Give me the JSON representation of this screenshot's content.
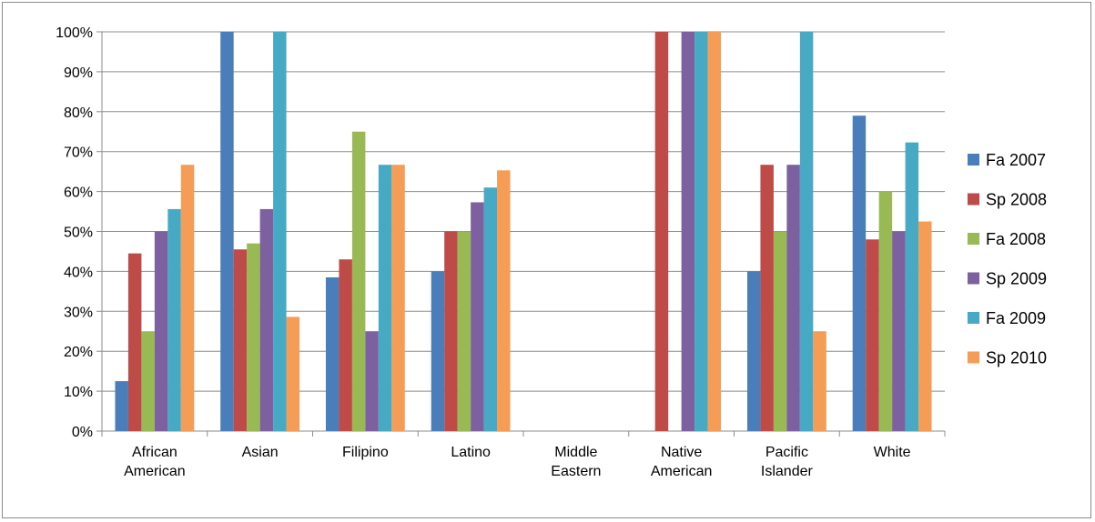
{
  "chart_data": {
    "type": "bar",
    "categories": [
      [
        "African",
        "American"
      ],
      [
        "Asian"
      ],
      [
        "Filipino"
      ],
      [
        "Latino"
      ],
      [
        "Middle",
        "Eastern"
      ],
      [
        "Native",
        "American"
      ],
      [
        "Pacific",
        "Islander"
      ],
      [
        "White"
      ]
    ],
    "series": [
      {
        "name": "Fa 2007",
        "color": "#4a7ebb",
        "values": [
          12.5,
          100,
          38.5,
          40,
          null,
          null,
          40,
          79
        ]
      },
      {
        "name": "Sp 2008",
        "color": "#be4b48",
        "values": [
          44.5,
          45.5,
          43,
          50,
          null,
          100,
          66.7,
          48
        ]
      },
      {
        "name": "Fa 2008",
        "color": "#98b954",
        "values": [
          25,
          47,
          75,
          50,
          null,
          null,
          50,
          60
        ]
      },
      {
        "name": "Sp 2009",
        "color": "#7d60a0",
        "values": [
          50,
          55.6,
          25,
          57.3,
          null,
          100,
          66.7,
          50
        ]
      },
      {
        "name": "Fa 2009",
        "color": "#46aac4",
        "values": [
          55.6,
          100,
          66.7,
          61,
          null,
          100,
          100,
          72.3
        ]
      },
      {
        "name": "Sp 2010",
        "color": "#f59d56",
        "values": [
          66.7,
          28.6,
          66.7,
          65.3,
          null,
          100,
          25,
          52.5
        ]
      }
    ],
    "ylim": [
      0,
      100
    ],
    "yticks": [
      "0%",
      "10%",
      "20%",
      "30%",
      "40%",
      "50%",
      "60%",
      "70%",
      "80%",
      "90%",
      "100%"
    ],
    "grid": true,
    "legend": "right",
    "title": "",
    "xlabel": "",
    "ylabel": ""
  }
}
